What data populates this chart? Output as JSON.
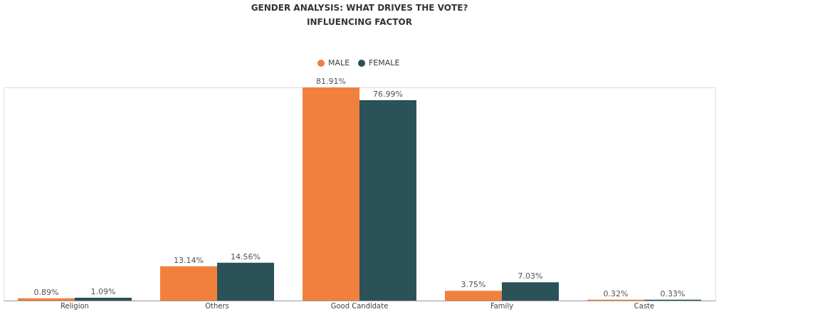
{
  "chart_data": {
    "type": "bar",
    "title": "GENDER ANALYSIS: WHAT DRIVES THE VOTE?",
    "subtitle": "INFLUENCING FACTOR",
    "categories": [
      "Religion",
      "Others",
      "Good Candidate",
      "Family",
      "Caste"
    ],
    "series": [
      {
        "name": "MALE",
        "color": "#f0803c",
        "values": [
          0.89,
          13.14,
          81.91,
          3.75,
          0.32
        ],
        "value_labels": [
          "0.89%",
          "13.14%",
          "81.91%",
          "3.75%",
          "0.32%"
        ]
      },
      {
        "name": "FEMALE",
        "color": "#2b5159",
        "values": [
          1.09,
          14.56,
          76.99,
          7.03,
          0.33
        ],
        "value_labels": [
          "1.09%",
          "14.56%",
          "76.99%",
          "7.03%",
          "0.33%"
        ]
      }
    ],
    "legend": "top"
  }
}
